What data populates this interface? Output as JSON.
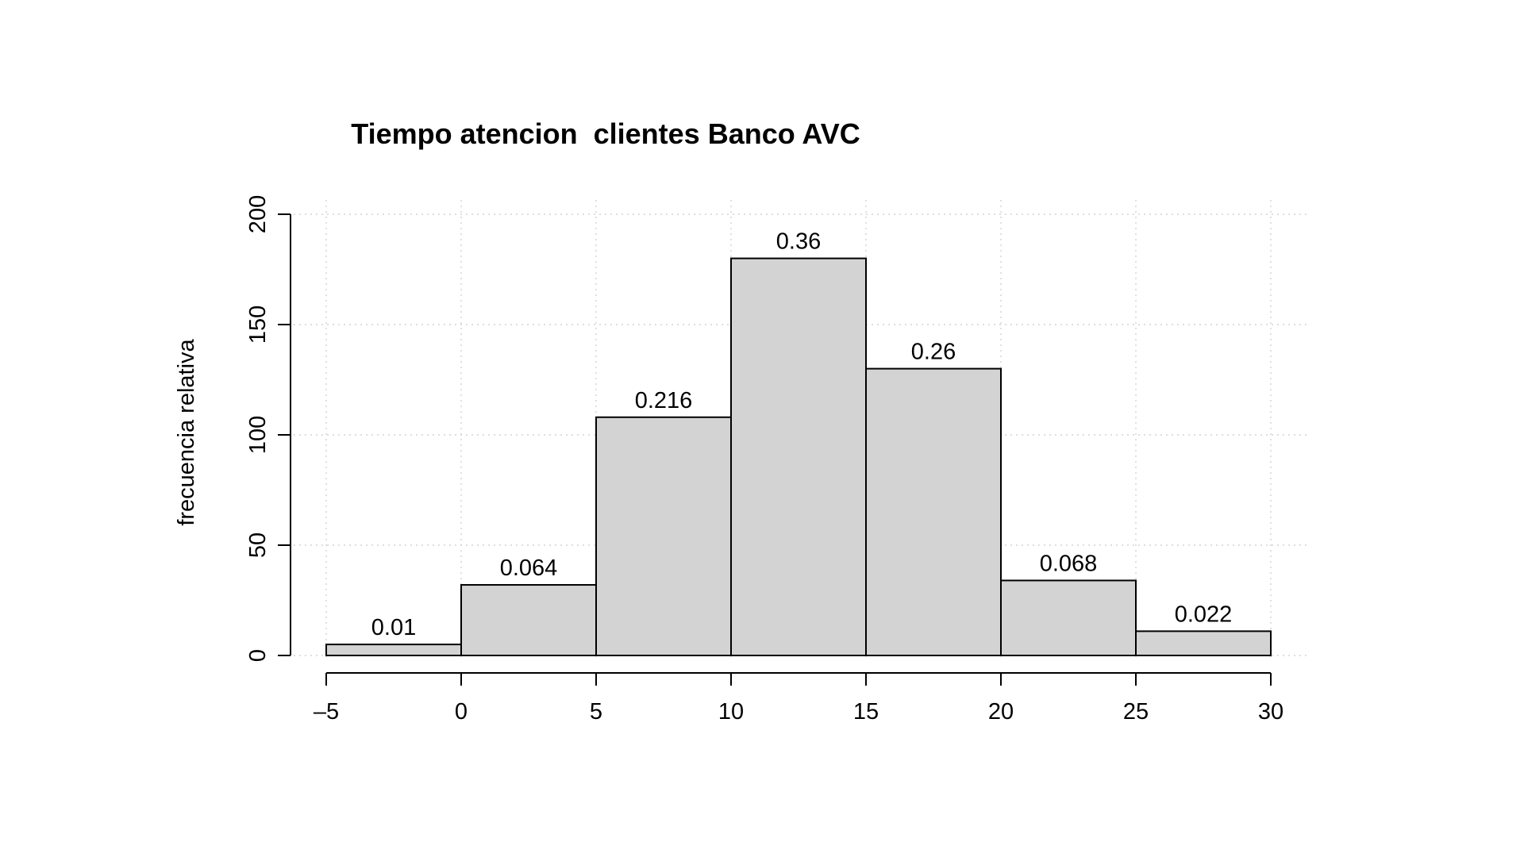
{
  "chart_data": {
    "type": "bar",
    "subtype": "histogram",
    "title": "Tiempo atencion  clientes Banco AVC",
    "xlabel": "",
    "ylabel": "frecuencia relativa",
    "bins": [
      {
        "start": -5,
        "end": 0,
        "count": 5,
        "label": "0.01"
      },
      {
        "start": 0,
        "end": 5,
        "count": 32,
        "label": "0.064"
      },
      {
        "start": 5,
        "end": 10,
        "count": 108,
        "label": "0.216"
      },
      {
        "start": 10,
        "end": 15,
        "count": 180,
        "label": "0.36"
      },
      {
        "start": 15,
        "end": 20,
        "count": 130,
        "label": "0.26"
      },
      {
        "start": 20,
        "end": 25,
        "count": 34,
        "label": "0.068"
      },
      {
        "start": 25,
        "end": 30,
        "count": 11,
        "label": "0.022"
      }
    ],
    "xlim": [
      -5,
      30
    ],
    "ylim": [
      0,
      200
    ],
    "x_ticks": [
      -5,
      0,
      5,
      10,
      15,
      20,
      25,
      30
    ],
    "x_tick_labels": [
      "–5",
      "0",
      "5",
      "10",
      "15",
      "20",
      "25",
      "30"
    ],
    "y_ticks": [
      0,
      50,
      100,
      150,
      200
    ],
    "y_tick_labels": [
      "0",
      "50",
      "100",
      "150",
      "200"
    ],
    "grid": true,
    "colors": {
      "bar_fill": "#d3d3d3",
      "bar_stroke": "#000000",
      "grid": "#d3d3d3"
    }
  }
}
